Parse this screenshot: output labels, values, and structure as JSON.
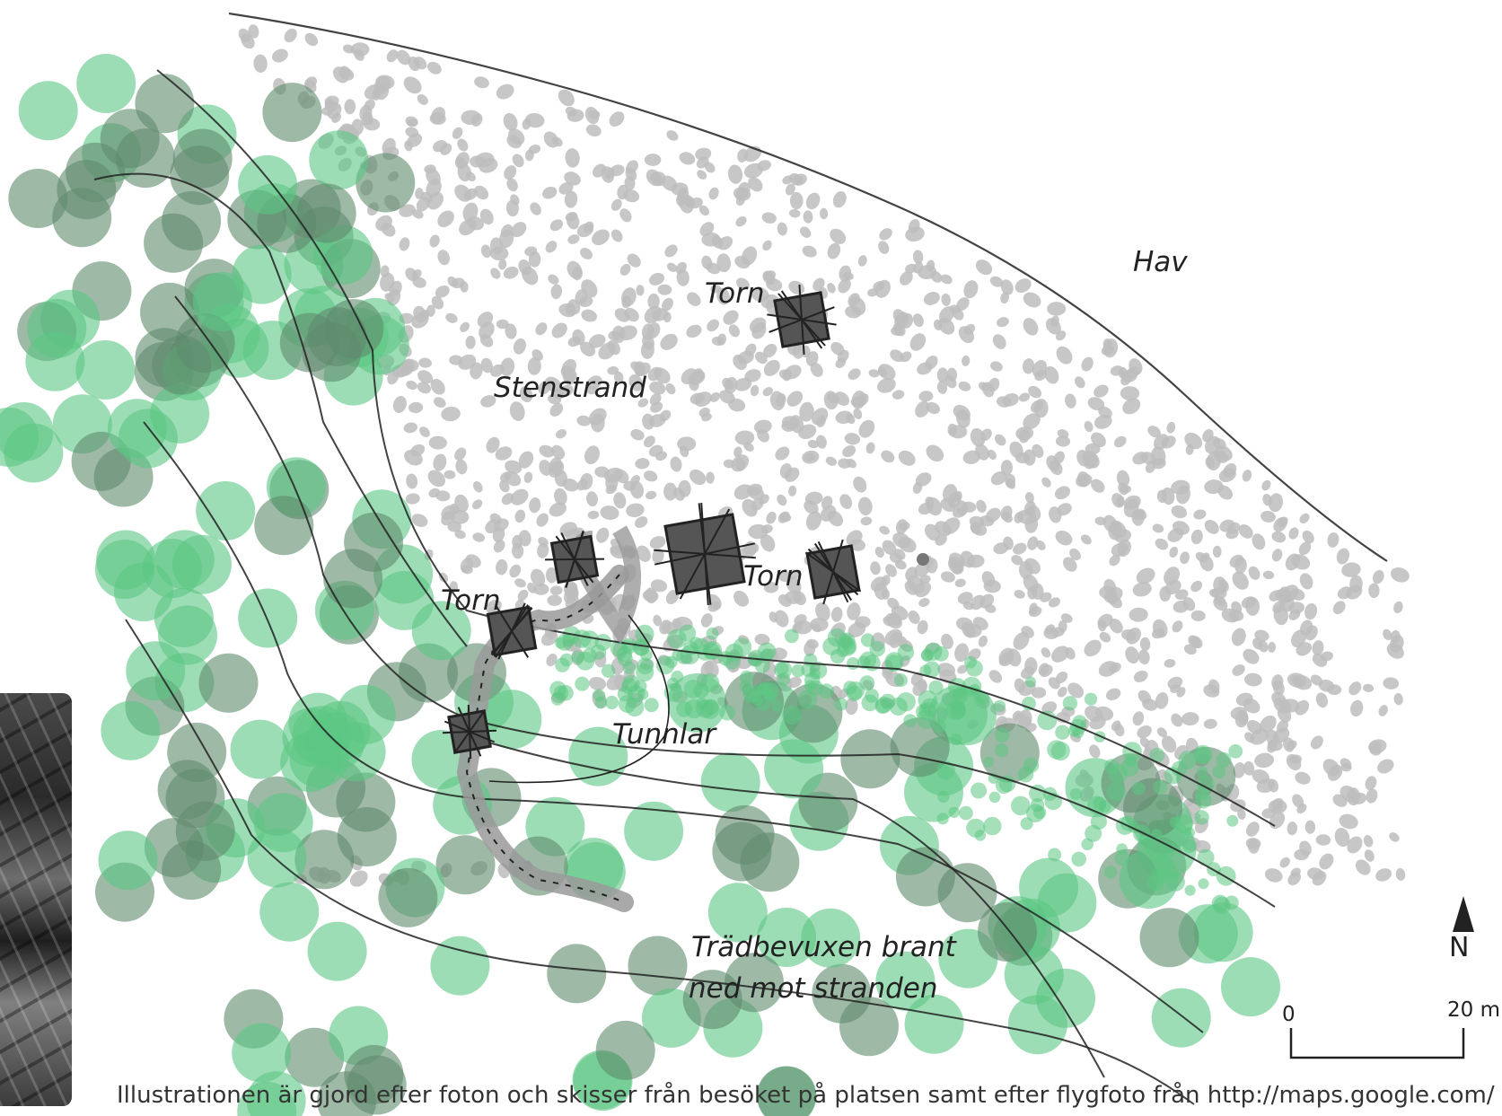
{
  "labels": {
    "sea": "Hav",
    "stone_beach": "Stenstrand",
    "tower_1": "Torn",
    "tower_2": "Torn",
    "tower_3": "Torn",
    "tunnels": "Tunnlar",
    "slope_line1": "Trädbevuxen brant",
    "slope_line2": "ned mot stranden"
  },
  "north_arrow": {
    "letter": "N"
  },
  "scale_bar": {
    "start_label": "0",
    "end_label": "20 m"
  },
  "caption": "Illustrationen är gjord efter foton och skisser från besöket på platsen samt efter flygfoto från http://maps.google.com/",
  "colors": {
    "tree_green": "#5cc783",
    "tree_dark": "#5f8a6d",
    "stone_grey": "#bdbdbd",
    "tower_fill": "#555555",
    "tunnel_fill": "#9a9a9a",
    "line": "#222222"
  },
  "icons": {
    "north": "north-arrow-icon",
    "photo": "photo-thumbnail"
  }
}
